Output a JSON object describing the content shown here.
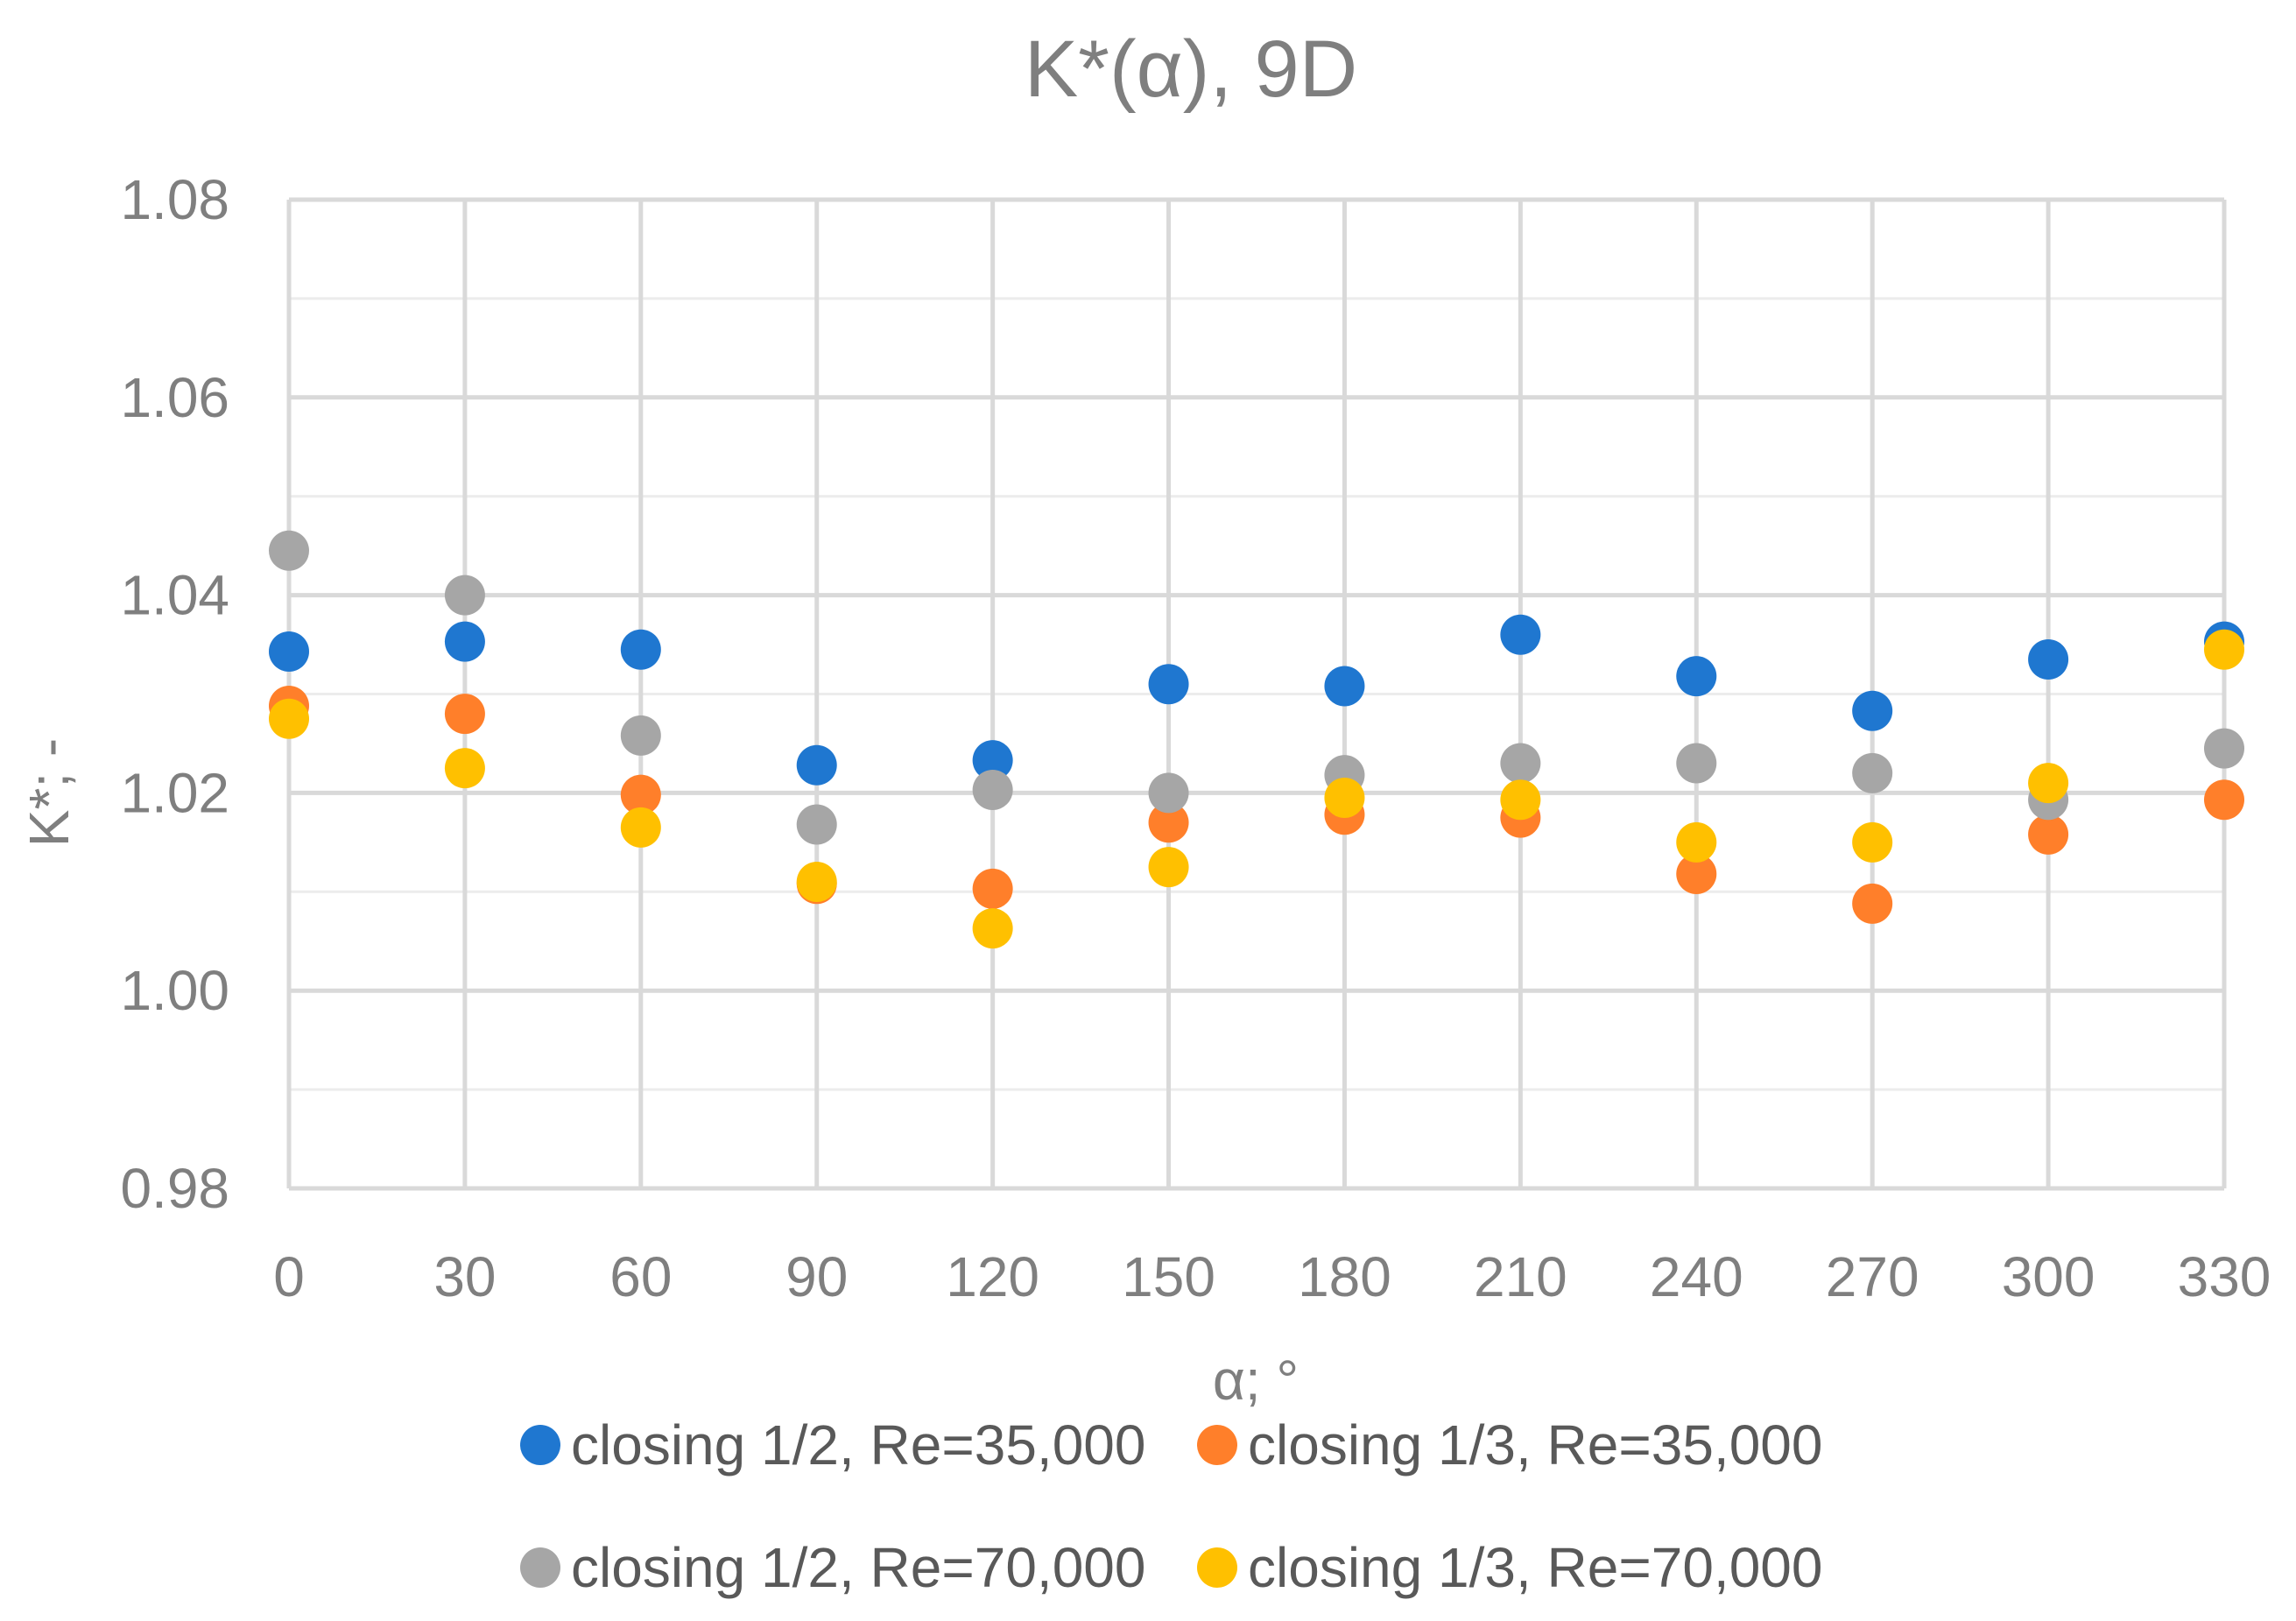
{
  "chart_data": {
    "type": "scatter",
    "title": "K*(α), 9D",
    "xlabel": "α; °",
    "ylabel": "K*; -",
    "x": [
      0,
      30,
      60,
      90,
      120,
      150,
      180,
      210,
      240,
      270,
      300,
      330
    ],
    "x_tick_labels": [
      "0",
      "30",
      "60",
      "90",
      "120",
      "150",
      "180",
      "210",
      "240",
      "270",
      "300",
      "330"
    ],
    "xlim": [
      0,
      330
    ],
    "ylim": [
      0.98,
      1.08
    ],
    "y_major_ticks": [
      0.98,
      1.0,
      1.02,
      1.04,
      1.06,
      1.08
    ],
    "y_tick_labels": [
      "0.98",
      "1.00",
      "1.02",
      "1.04",
      "1.06",
      "1.08"
    ],
    "y_minor_ticks": [
      0.99,
      1.01,
      1.03,
      1.05,
      1.07
    ],
    "grid": true,
    "legend_position": "bottom",
    "series": [
      {
        "name": "closing 1/2, Re=35,000",
        "color": "#1f77d0",
        "values": [
          1.0343,
          1.0353,
          1.0345,
          1.0228,
          1.0233,
          1.031,
          1.0308,
          1.036,
          1.0318,
          1.0283,
          1.0335,
          1.0353
        ]
      },
      {
        "name": "closing 1/3, Re=35,000",
        "color": "#ff7f2a",
        "values": [
          1.0288,
          1.028,
          1.0198,
          1.0108,
          1.0103,
          1.017,
          1.0178,
          1.0175,
          1.0118,
          1.0088,
          1.0158,
          1.0193
        ]
      },
      {
        "name": "closing 1/2, Re=70,000",
        "color": "#a6a6a6",
        "values": [
          1.0445,
          1.04,
          1.0258,
          1.0168,
          1.0203,
          1.02,
          1.0218,
          1.023,
          1.023,
          1.022,
          1.0193,
          1.0245
        ]
      },
      {
        "name": "closing 1/3, Re=70,000",
        "color": "#ffc000",
        "values": [
          1.0275,
          1.0225,
          1.0165,
          1.011,
          1.0063,
          1.0125,
          1.0195,
          1.0193,
          1.015,
          1.015,
          1.021,
          1.0345
        ]
      }
    ]
  }
}
